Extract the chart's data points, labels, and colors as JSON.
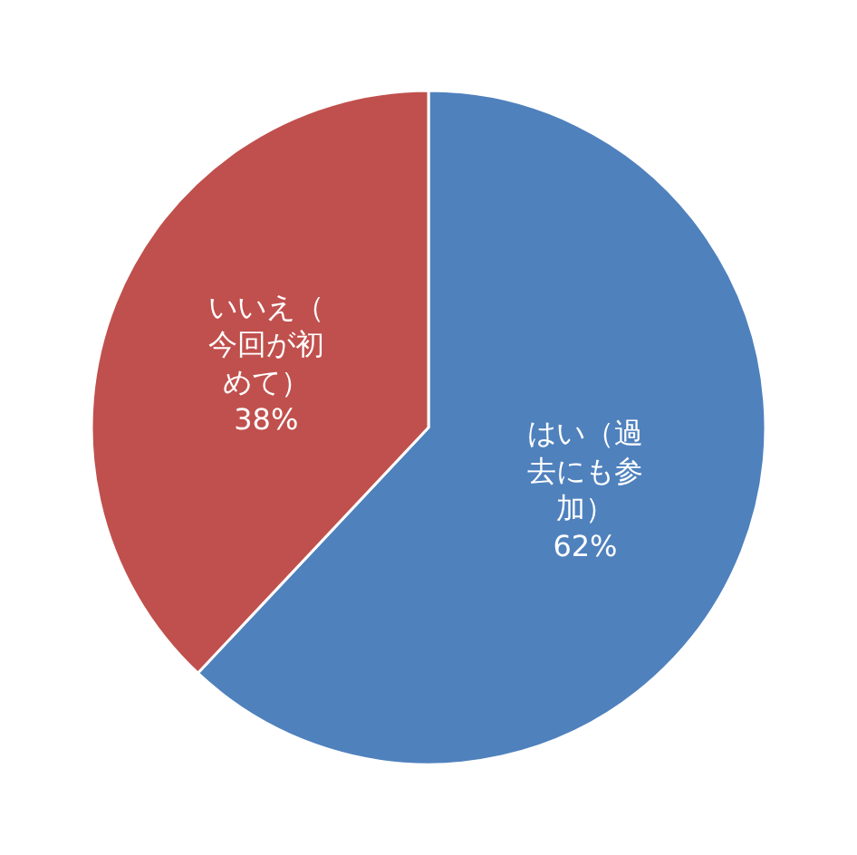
{
  "chart_data": {
    "type": "pie",
    "categories": [
      "はい（過去にも参加）",
      "いいえ（今回が初めて）"
    ],
    "values": [
      62,
      38
    ],
    "value_labels": [
      "62%",
      "38%"
    ],
    "colors": [
      "#4f81bd",
      "#c0504d"
    ],
    "legend": false
  }
}
